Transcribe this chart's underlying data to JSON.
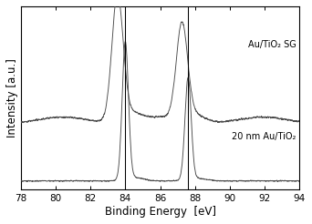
{
  "xlim": [
    78,
    94
  ],
  "ylim_label": "Intensity [a.u.]",
  "xlabel": "Binding Energy  [eV]",
  "xticks": [
    78,
    80,
    82,
    84,
    86,
    88,
    90,
    92,
    94
  ],
  "peak1_be": 84.0,
  "peak2_be": 87.6,
  "label_sg": "Au/TiO₂ SG",
  "label_ref": "20 nm Au/TiO₂",
  "line_color": "#4a4a4a",
  "bg_color": "#ffffff"
}
